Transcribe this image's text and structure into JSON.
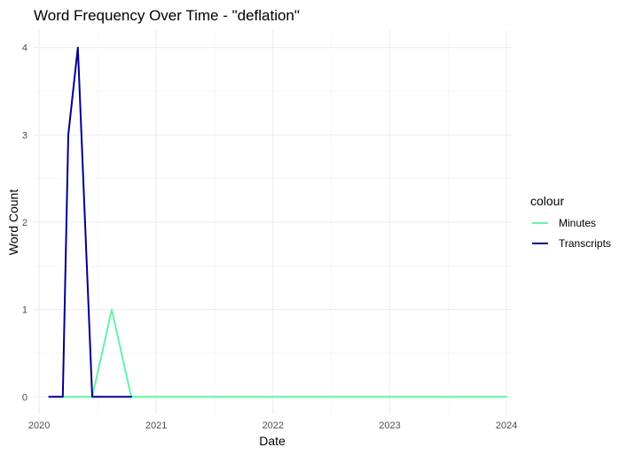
{
  "chart_data": {
    "type": "line",
    "title": "Word Frequency Over Time - \"deflation\"",
    "xlabel": "Date",
    "ylabel": "Word Count",
    "x_type": "date",
    "xlim": [
      "2019-12-15",
      "2024-01-20"
    ],
    "ylim": [
      -0.2,
      4.2
    ],
    "x_ticks": [
      {
        "label": "2020",
        "date": "2020-01-01"
      },
      {
        "label": "2021",
        "date": "2021-01-01"
      },
      {
        "label": "2022",
        "date": "2022-01-01"
      },
      {
        "label": "2023",
        "date": "2023-01-01"
      },
      {
        "label": "2024",
        "date": "2024-01-01"
      }
    ],
    "y_ticks": [
      0,
      1,
      2,
      3,
      4
    ],
    "grid": true,
    "legend": {
      "title": "colour",
      "position": "right"
    },
    "series": [
      {
        "name": "Minutes",
        "color": "#66f2a5",
        "points": [
          [
            "2020-02-15",
            0
          ],
          [
            "2020-06-15",
            0
          ],
          [
            "2020-08-15",
            1
          ],
          [
            "2020-10-15",
            0
          ],
          [
            "2021-01-15",
            0
          ],
          [
            "2021-06-15",
            0
          ],
          [
            "2022-01-15",
            0
          ],
          [
            "2022-06-15",
            0
          ],
          [
            "2023-01-15",
            0
          ],
          [
            "2023-06-15",
            0
          ],
          [
            "2024-01-01",
            0
          ]
        ]
      },
      {
        "name": "Transcripts",
        "color": "#00008b",
        "points": [
          [
            "2020-02-01",
            0
          ],
          [
            "2020-03-15",
            0
          ],
          [
            "2020-04-01",
            3
          ],
          [
            "2020-05-01",
            4
          ],
          [
            "2020-06-15",
            0
          ],
          [
            "2020-07-15",
            0
          ],
          [
            "2020-10-15",
            0
          ]
        ]
      }
    ]
  }
}
